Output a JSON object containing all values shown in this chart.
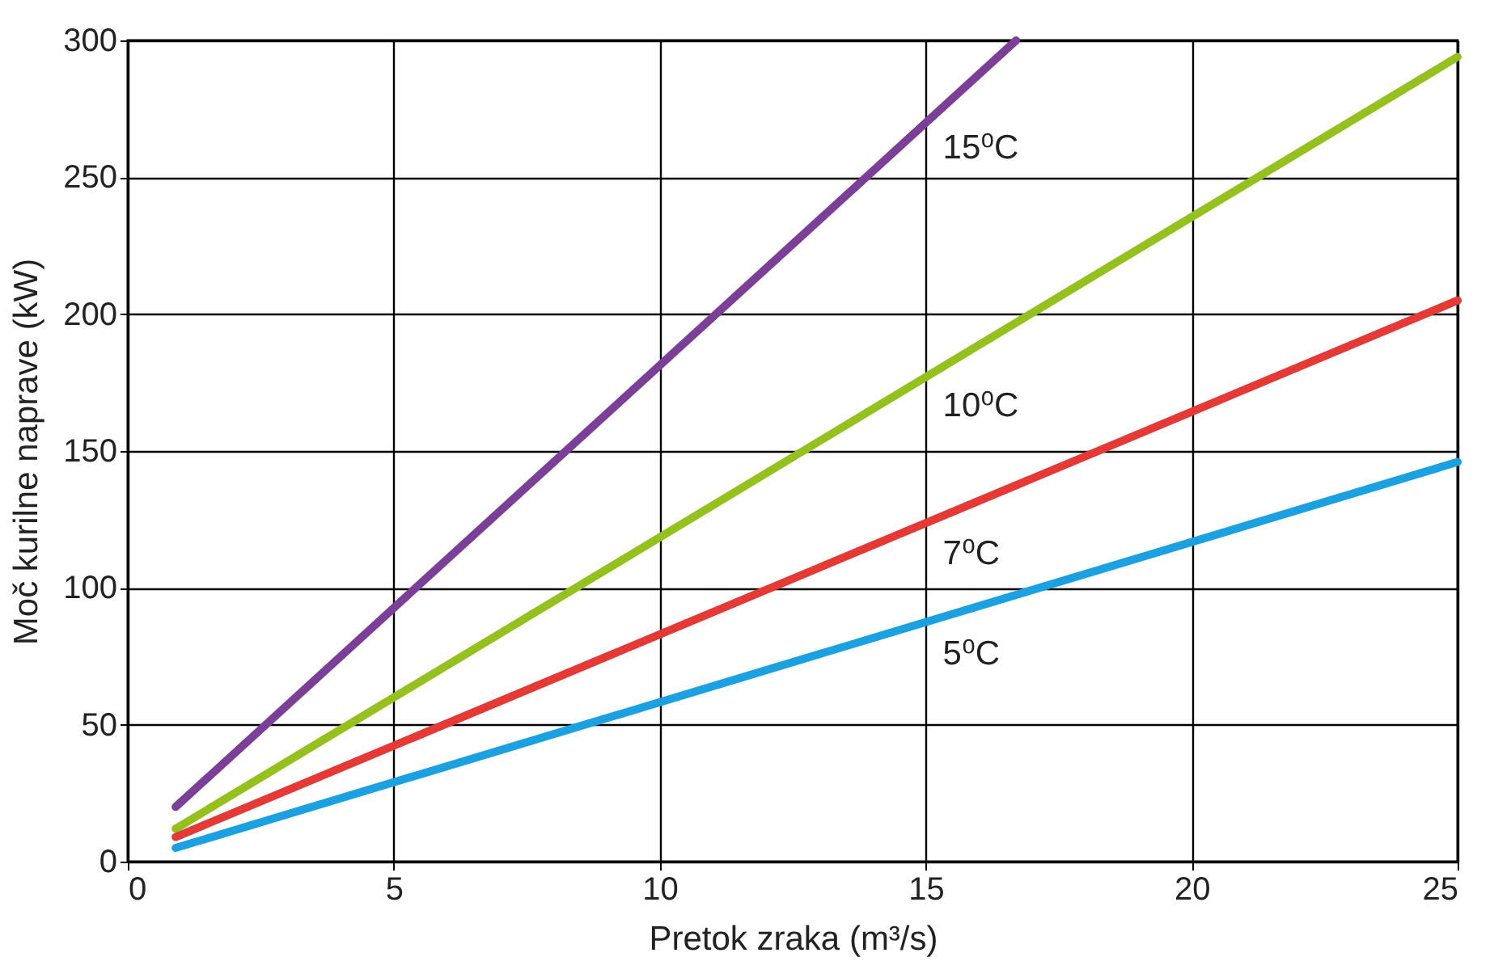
{
  "chart_data": {
    "type": "line",
    "xlabel": "Pretok zraka (m³/s)",
    "ylabel": "Moč kurilne naprave (kW)",
    "xlim": [
      0,
      25
    ],
    "xticks": [
      0,
      5,
      10,
      15,
      20,
      25
    ],
    "ylim": [
      0,
      300
    ],
    "yticks": [
      0,
      50,
      100,
      150,
      200,
      250,
      300
    ],
    "grid": true,
    "line_style": "solid",
    "series": [
      {
        "name": "15⁰C",
        "color": "#7b3f98",
        "x": [
          0.9,
          16.7
        ],
        "values": [
          20,
          300
        ]
      },
      {
        "name": "10⁰C",
        "color": "#95c11f",
        "x": [
          0.9,
          25
        ],
        "values": [
          12,
          294
        ]
      },
      {
        "name": "7⁰C",
        "color": "#e53935",
        "x": [
          0.9,
          25
        ],
        "values": [
          9,
          205
        ]
      },
      {
        "name": "5⁰C",
        "color": "#1ba1e2",
        "x": [
          0.9,
          25
        ],
        "values": [
          5,
          146
        ]
      }
    ]
  }
}
